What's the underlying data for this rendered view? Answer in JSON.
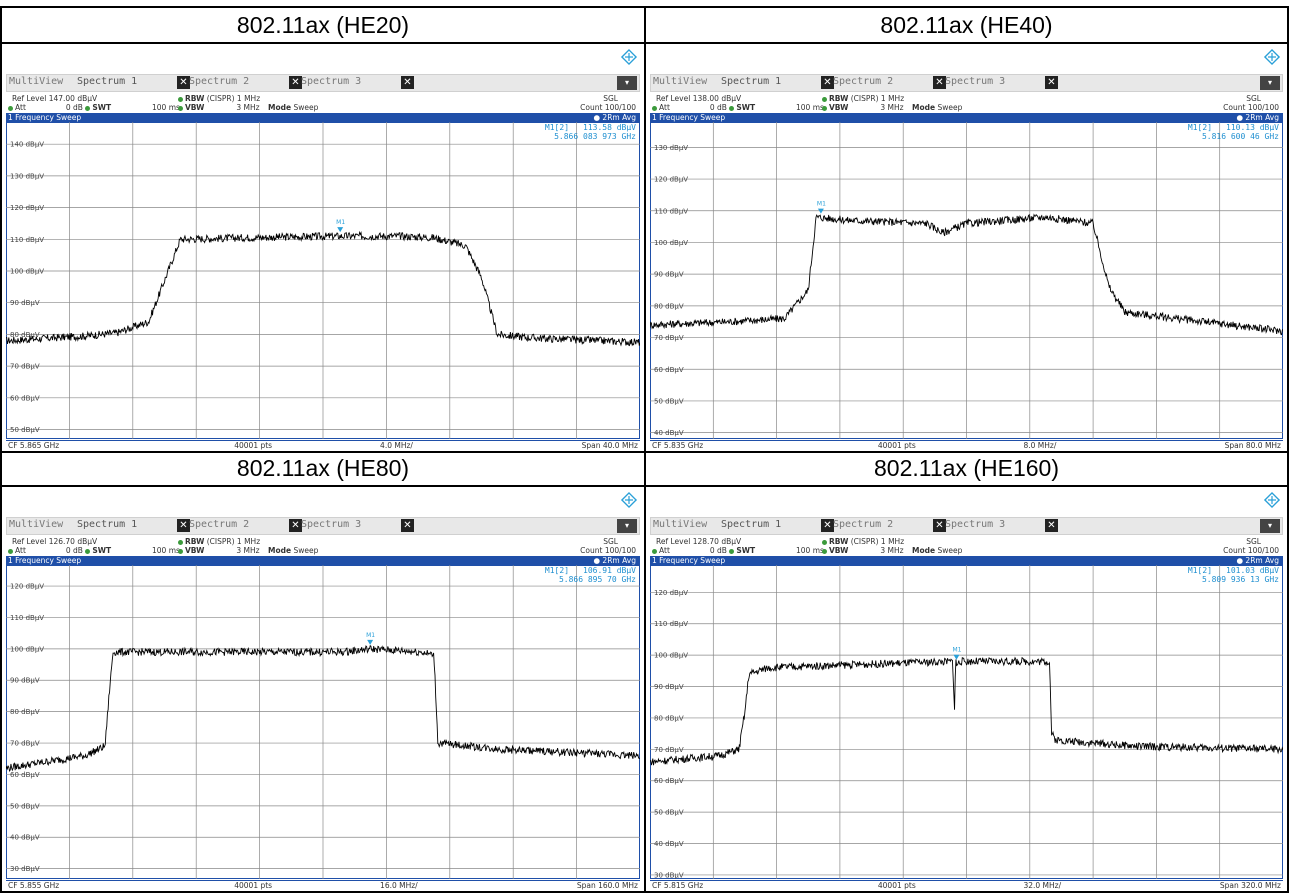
{
  "panels": [
    {
      "title": "802.11ax (HE20)",
      "tabs": [
        "MultiView",
        "Spectrum 1",
        "Spectrum 2",
        "Spectrum 3"
      ],
      "ref_level": "Ref Level 147.00 dBµV",
      "att": "Att",
      "att_val": "0 dB",
      "swt": "SWT",
      "swt_val": "100 ms",
      "rbw": "RBW",
      "rbw_val": "(CISPR) 1 MHz",
      "vbw": "VBW",
      "vbw_val": "3 MHz",
      "mode": "Mode",
      "mode_val": "Sweep",
      "sgl": "SGL",
      "count": "Count 100/100",
      "sweep_label": "1 Frequency Sweep",
      "trace_label": "2Rm Avg",
      "marker_name": "M1[2]",
      "marker_level": "113.58 dBµV",
      "marker_freq": "5.866 083 973 GHz",
      "marker_label": "M1",
      "footer_cf": "CF 5.865 GHz",
      "footer_pts": "40001 pts",
      "footer_div": "4.0 MHz/",
      "footer_span": "Span 40.0 MHz"
    },
    {
      "title": "802.11ax (HE40)",
      "tabs": [
        "MultiView",
        "Spectrum 1",
        "Spectrum 2",
        "Spectrum 3"
      ],
      "ref_level": "Ref Level 138.00 dBµV",
      "att": "Att",
      "att_val": "0 dB",
      "swt": "SWT",
      "swt_val": "100 ms",
      "rbw": "RBW",
      "rbw_val": "(CISPR) 1 MHz",
      "vbw": "VBW",
      "vbw_val": "3 MHz",
      "mode": "Mode",
      "mode_val": "Sweep",
      "sgl": "SGL",
      "count": "Count 100/100",
      "sweep_label": "1 Frequency Sweep",
      "trace_label": "2Rm Avg",
      "marker_name": "M1[2]",
      "marker_level": "110.13 dBµV",
      "marker_freq": "5.816 600 46 GHz",
      "marker_label": "M1",
      "footer_cf": "CF 5.835 GHz",
      "footer_pts": "40001 pts",
      "footer_div": "8.0 MHz/",
      "footer_span": "Span 80.0 MHz"
    },
    {
      "title": "802.11ax (HE80)",
      "tabs": [
        "MultiView",
        "Spectrum 1",
        "Spectrum 2",
        "Spectrum 3"
      ],
      "ref_level": "Ref Level 126.70 dBµV",
      "att": "Att",
      "att_val": "0 dB",
      "swt": "SWT",
      "swt_val": "100 ms",
      "rbw": "RBW",
      "rbw_val": "(CISPR) 1 MHz",
      "vbw": "VBW",
      "vbw_val": "3 MHz",
      "mode": "Mode",
      "mode_val": "Sweep",
      "sgl": "SGL",
      "count": "Count 100/100",
      "sweep_label": "1 Frequency Sweep",
      "trace_label": "2Rm Avg",
      "marker_name": "M1[2]",
      "marker_level": "106.91 dBµV",
      "marker_freq": "5.866 895 70 GHz",
      "marker_label": "M1",
      "footer_cf": "CF 5.855 GHz",
      "footer_pts": "40001 pts",
      "footer_div": "16.0 MHz/",
      "footer_span": "Span 160.0 MHz"
    },
    {
      "title": "802.11ax (HE160)",
      "tabs": [
        "MultiView",
        "Spectrum 1",
        "Spectrum 2",
        "Spectrum 3"
      ],
      "ref_level": "Ref Level 128.70 dBµV",
      "att": "Att",
      "att_val": "0 dB",
      "swt": "SWT",
      "swt_val": "100 ms",
      "rbw": "RBW",
      "rbw_val": "(CISPR) 1 MHz",
      "vbw": "VBW",
      "vbw_val": "3 MHz",
      "mode": "Mode",
      "mode_val": "Sweep",
      "sgl": "SGL",
      "count": "Count 100/100",
      "sweep_label": "1 Frequency Sweep",
      "trace_label": "2Rm Avg",
      "marker_name": "M1[2]",
      "marker_level": "101.03 dBµV",
      "marker_freq": "5.809 936 13 GHz",
      "marker_label": "M1",
      "footer_cf": "CF 5.815 GHz",
      "footer_pts": "40001 pts",
      "footer_div": "32.0 MHz/",
      "footer_span": "Span 320.0 MHz"
    }
  ],
  "chart_data": [
    {
      "type": "line",
      "title": "802.11ax (HE20)",
      "ylabel": "dBµV",
      "y_ticks": [
        "140 dBµV",
        "130 dBµV",
        "120 dBµV",
        "110 dBµV",
        "100 dBµV",
        "90 dBµV",
        "80 dBµV",
        "70 dBµV",
        "60 dBµV",
        "50 dBµV"
      ],
      "ylim": [
        47,
        147
      ],
      "xlim": [
        5.845,
        5.885
      ],
      "x_unit": "GHz",
      "x_divisions": 10,
      "grid": true,
      "series": [
        {
          "x": [
            5.845,
            5.85,
            5.852,
            5.854,
            5.855,
            5.856,
            5.86,
            5.866,
            5.87,
            5.872,
            5.874,
            5.875,
            5.876,
            5.878,
            5.88,
            5.885
          ],
          "y": [
            78,
            79.5,
            80.5,
            84,
            97,
            110,
            110.5,
            111,
            111,
            110.5,
            108,
            98,
            80,
            79,
            78.5,
            77.5
          ]
        }
      ],
      "marker": {
        "x": 5.866083973,
        "y": 113.58
      }
    },
    {
      "type": "line",
      "title": "802.11ax (HE40)",
      "ylabel": "dBµV",
      "y_ticks": [
        "130 dBµV",
        "120 dBµV",
        "110 dBµV",
        "100 dBµV",
        "90 dBµV",
        "80 dBµV",
        "70 dBµV",
        "60 dBµV",
        "50 dBµV",
        "40 dBµV"
      ],
      "ylim": [
        38,
        138
      ],
      "xlim": [
        5.795,
        5.875
      ],
      "x_unit": "GHz",
      "x_divisions": 10,
      "grid": true,
      "series": [
        {
          "x": [
            5.795,
            5.805,
            5.812,
            5.815,
            5.816,
            5.82,
            5.83,
            5.832,
            5.835,
            5.845,
            5.851,
            5.853,
            5.855,
            5.865,
            5.875
          ],
          "y": [
            74,
            75,
            76,
            85,
            108,
            107,
            106,
            103,
            106,
            108,
            106,
            86,
            78,
            75,
            72
          ]
        }
      ],
      "marker": {
        "x": 5.81660046,
        "y": 110.13
      }
    },
    {
      "type": "line",
      "title": "802.11ax (HE80)",
      "ylabel": "dBµV",
      "y_ticks": [
        "120 dBµV",
        "110 dBµV",
        "100 dBµV",
        "90 dBµV",
        "80 dBµV",
        "70 dBµV",
        "60 dBµV",
        "50 dBµV",
        "40 dBµV",
        "30 dBµV"
      ],
      "ylim": [
        26.7,
        126.7
      ],
      "xlim": [
        5.775,
        5.935
      ],
      "x_unit": "GHz",
      "x_divisions": 10,
      "grid": true,
      "series": [
        {
          "x": [
            5.775,
            5.795,
            5.8,
            5.801,
            5.802,
            5.83,
            5.86,
            5.867,
            5.88,
            5.883,
            5.884,
            5.9,
            5.935
          ],
          "y": [
            62,
            66,
            69,
            85,
            99,
            99,
            99,
            100,
            99,
            98,
            70,
            68,
            66
          ]
        }
      ],
      "marker": {
        "x": 5.8668957,
        "y": 106.91
      }
    },
    {
      "type": "line",
      "title": "802.11ax (HE160)",
      "ylabel": "dBµV",
      "y_ticks": [
        "120 dBµV",
        "110 dBµV",
        "100 dBµV",
        "90 dBµV",
        "80 dBµV",
        "70 dBµV",
        "60 dBµV",
        "50 dBµV",
        "40 dBµV",
        "30 dBµV"
      ],
      "ylim": [
        28.7,
        128.7
      ],
      "xlim": [
        5.655,
        5.975
      ],
      "x_unit": "GHz",
      "x_divisions": 10,
      "grid": true,
      "series": [
        {
          "x": [
            5.655,
            5.69,
            5.7,
            5.703,
            5.705,
            5.715,
            5.76,
            5.808,
            5.809,
            5.8095,
            5.81,
            5.812,
            5.84,
            5.857,
            5.858,
            5.86,
            5.9,
            5.975
          ],
          "y": [
            66,
            68,
            70,
            82,
            94,
            96,
            97,
            98,
            82,
            99,
            97,
            98,
            98,
            98,
            75,
            73,
            71,
            70
          ]
        }
      ],
      "marker": {
        "x": 5.80993613,
        "y": 101.03
      }
    }
  ]
}
